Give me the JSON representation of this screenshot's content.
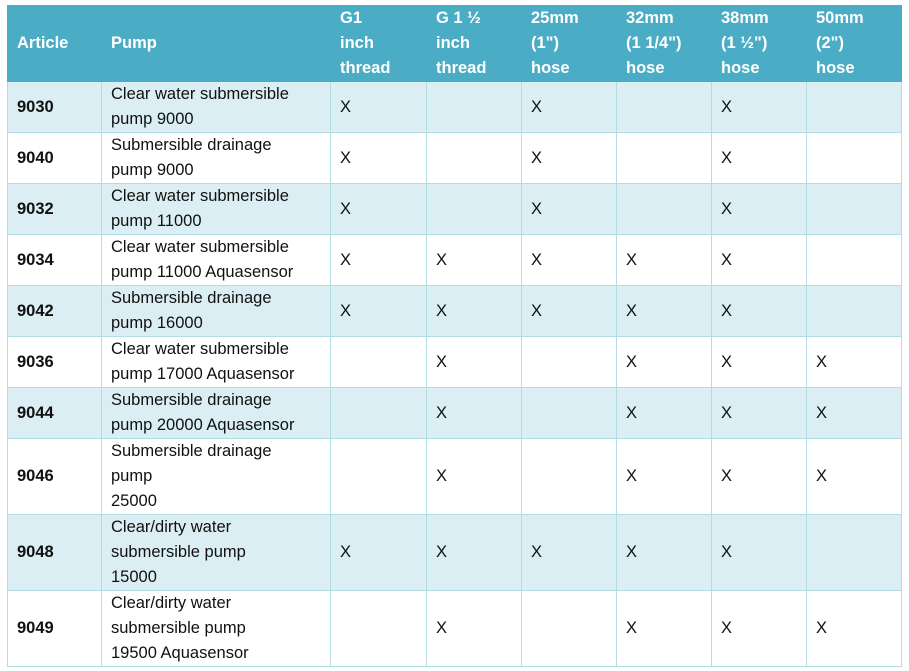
{
  "table": {
    "header": [
      "Article",
      "Pump",
      "G1\ninch\nthread",
      "G 1 ½\ninch\nthread",
      "25mm\n(1\")\nhose",
      "32mm\n(1 1/4\")\nhose",
      "38mm\n(1 ½\")\nhose",
      "50mm\n(2\")\nhose"
    ],
    "rows": [
      [
        "9030",
        "Clear water submersible\npump 9000",
        "X",
        null,
        "X",
        null,
        "X",
        null
      ],
      [
        "9040",
        "Submersible drainage\npump 9000",
        "X",
        null,
        "X",
        null,
        "X",
        null
      ],
      [
        "9032",
        "Clear water submersible\npump 11000",
        "X",
        null,
        "X",
        null,
        "X",
        null
      ],
      [
        "9034",
        "Clear water submersible\npump 11000 Aquasensor",
        "X",
        "X",
        "X",
        "X",
        "X",
        null
      ],
      [
        "9042",
        "Submersible drainage\npump 16000",
        "X",
        "X",
        "X",
        "X",
        "X",
        null
      ],
      [
        "9036",
        "Clear water submersible\npump 17000 Aquasensor",
        null,
        "X",
        null,
        "X",
        "X",
        "X"
      ],
      [
        "9044",
        "Submersible drainage\npump 20000 Aquasensor",
        null,
        "X",
        null,
        "X",
        "X",
        "X"
      ],
      [
        "9046",
        "Submersible drainage\npump\n25000",
        null,
        "X",
        null,
        "X",
        "X",
        "X"
      ],
      [
        "9048",
        "Clear/dirty water\nsubmersible pump\n15000",
        "X",
        "X",
        "X",
        "X",
        "X",
        null
      ],
      [
        "9049",
        "Clear/dirty water\nsubmersible pump\n19500 Aquasensor",
        null,
        "X",
        null,
        "X",
        "X",
        "X"
      ]
    ]
  }
}
